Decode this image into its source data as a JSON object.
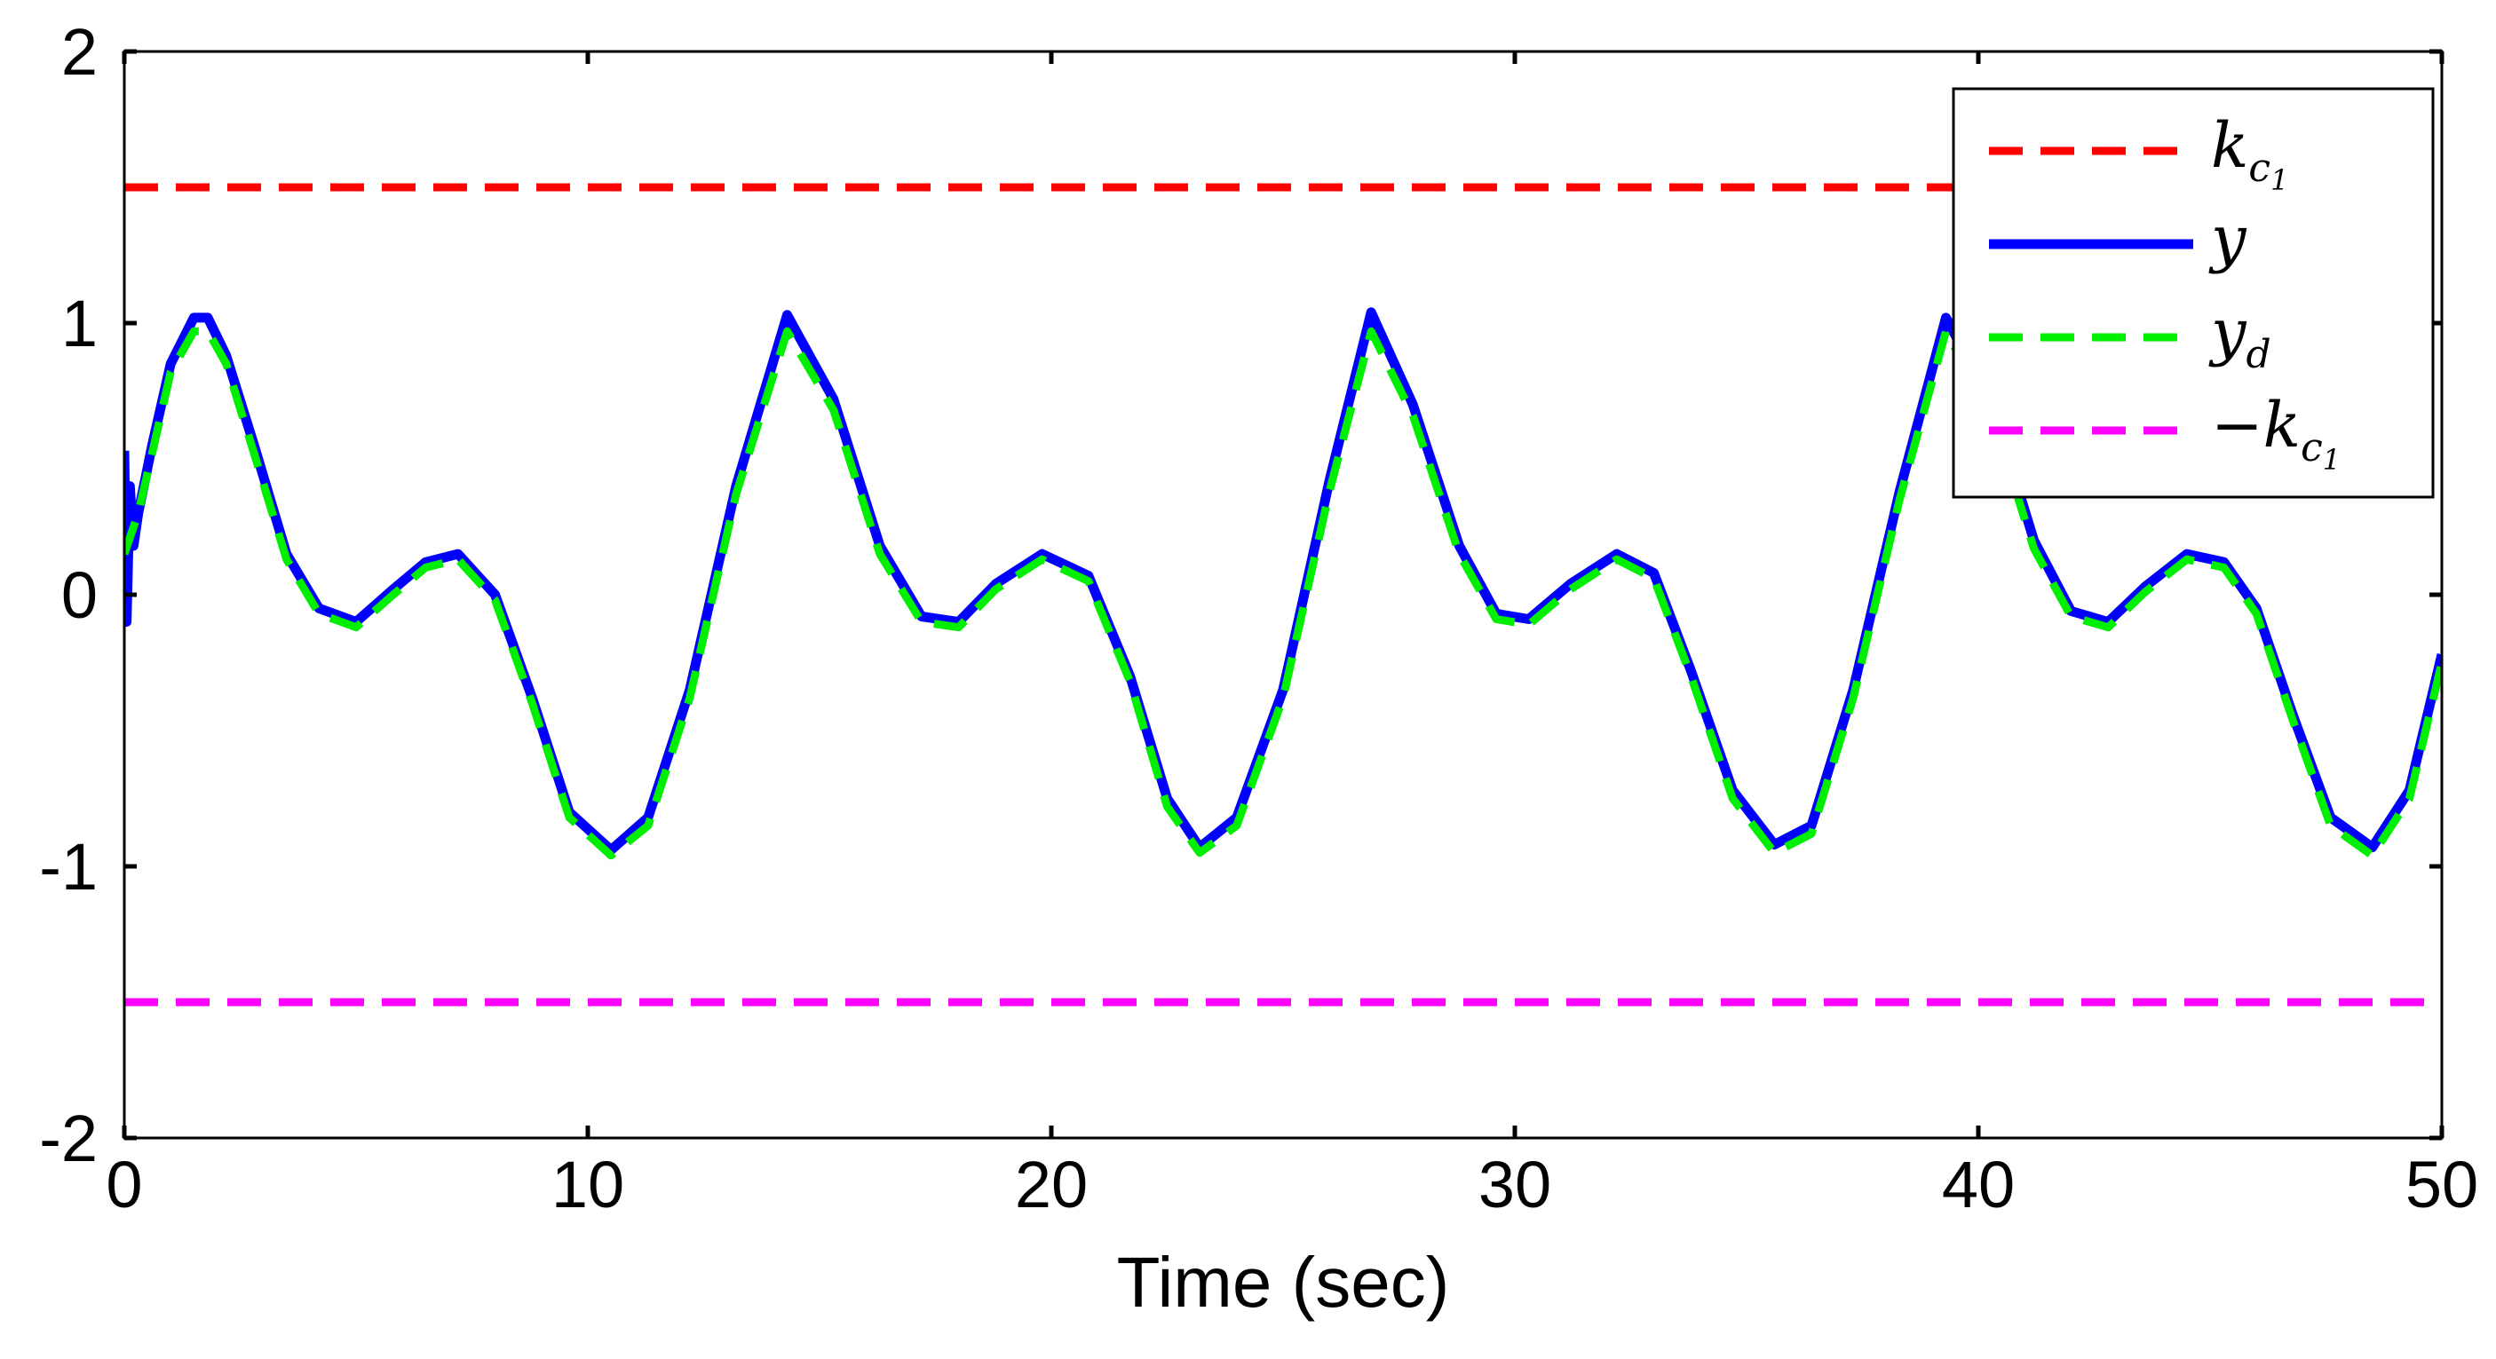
{
  "chart_data": {
    "type": "line",
    "xlabel": "Time (sec)",
    "ylabel": "",
    "xlim": [
      0,
      50
    ],
    "ylim": [
      -2,
      2
    ],
    "xticks": [
      0,
      10,
      20,
      30,
      40,
      50
    ],
    "yticks": [
      -2,
      -1,
      0,
      1,
      2
    ],
    "xtick_labels": [
      "0",
      "10",
      "20",
      "30",
      "40",
      "50"
    ],
    "ytick_labels": [
      "-2",
      "-1",
      "0",
      "1",
      "2"
    ],
    "grid": false,
    "legend_position": "top-right",
    "series": [
      {
        "name": "k_c1",
        "legend": {
          "base": "k",
          "sub": "c",
          "subsub": "1",
          "prefix": ""
        },
        "color": "#ff0000",
        "style": "dashed",
        "x": [
          0,
          50
        ],
        "y": [
          1.5,
          1.5
        ]
      },
      {
        "name": "y",
        "legend": {
          "base": "y",
          "sub": "",
          "subsub": "",
          "prefix": ""
        },
        "color": "#0000ff",
        "style": "solid",
        "x": [
          0,
          0.05,
          0.12,
          0.2,
          0.3,
          0.6,
          1.0,
          1.5,
          1.8,
          2.2,
          2.8,
          3.5,
          4.2,
          5.0,
          5.8,
          6.5,
          7.2,
          8.0,
          8.8,
          9.6,
          10.5,
          11.3,
          12.2,
          13.2,
          14.3,
          15.3,
          16.3,
          17.2,
          18.0,
          18.8,
          19.8,
          20.8,
          21.7,
          22.5,
          23.2,
          24.0,
          25.0,
          26.0,
          26.9,
          27.8,
          28.8,
          29.6,
          30.3,
          31.2,
          32.2,
          33.0,
          33.8,
          34.7,
          35.6,
          36.4,
          37.3,
          38.3,
          39.3,
          40.3,
          41.2,
          42.0,
          42.8,
          43.6,
          44.5,
          45.3,
          46.0,
          46.8,
          47.6,
          48.5,
          49.3,
          50.0
        ],
        "y": [
          0.53,
          -0.1,
          0.4,
          0.18,
          0.3,
          0.55,
          0.85,
          1.02,
          1.02,
          0.88,
          0.55,
          0.15,
          -0.05,
          -0.1,
          0.02,
          0.12,
          0.15,
          0.0,
          -0.38,
          -0.8,
          -0.94,
          -0.82,
          -0.35,
          0.4,
          1.03,
          0.72,
          0.18,
          -0.08,
          -0.1,
          0.04,
          0.15,
          0.07,
          -0.3,
          -0.75,
          -0.93,
          -0.82,
          -0.35,
          0.42,
          1.04,
          0.7,
          0.18,
          -0.07,
          -0.09,
          0.04,
          0.15,
          0.08,
          -0.28,
          -0.72,
          -0.92,
          -0.85,
          -0.35,
          0.38,
          1.02,
          0.7,
          0.2,
          -0.06,
          -0.1,
          0.03,
          0.15,
          0.12,
          -0.05,
          -0.45,
          -0.82,
          -0.93,
          -0.72,
          -0.22
        ]
      },
      {
        "name": "y_d",
        "legend": {
          "base": "y",
          "sub": "d",
          "subsub": "",
          "prefix": ""
        },
        "color": "#00ee00",
        "style": "dashed",
        "x": [
          0,
          0.3,
          0.6,
          1.0,
          1.5,
          1.8,
          2.2,
          2.8,
          3.5,
          4.2,
          5.0,
          5.8,
          6.5,
          7.2,
          8.0,
          8.8,
          9.6,
          10.5,
          11.3,
          12.2,
          13.2,
          14.3,
          15.3,
          16.3,
          17.2,
          18.0,
          18.8,
          19.8,
          20.8,
          21.7,
          22.5,
          23.2,
          24.0,
          25.0,
          26.0,
          26.9,
          27.8,
          28.8,
          29.6,
          30.3,
          31.2,
          32.2,
          33.0,
          33.8,
          34.7,
          35.6,
          36.4,
          37.3,
          38.3,
          39.3,
          40.3,
          41.2,
          42.0,
          42.8,
          43.6,
          44.5,
          45.3,
          46.0,
          46.8,
          47.6,
          48.5,
          49.3,
          50.0
        ],
        "y": [
          0.15,
          0.3,
          0.52,
          0.82,
          0.97,
          0.97,
          0.85,
          0.52,
          0.13,
          -0.07,
          -0.12,
          0.0,
          0.1,
          0.13,
          -0.02,
          -0.4,
          -0.82,
          -0.96,
          -0.85,
          -0.38,
          0.37,
          0.97,
          0.68,
          0.15,
          -0.1,
          -0.12,
          0.02,
          0.13,
          0.05,
          -0.32,
          -0.78,
          -0.95,
          -0.85,
          -0.38,
          0.38,
          0.97,
          0.66,
          0.15,
          -0.09,
          -0.11,
          0.02,
          0.13,
          0.06,
          -0.3,
          -0.75,
          -0.95,
          -0.88,
          -0.38,
          0.35,
          0.97,
          0.66,
          0.17,
          -0.08,
          -0.12,
          0.01,
          0.13,
          0.1,
          -0.07,
          -0.47,
          -0.85,
          -0.96,
          -0.75,
          -0.25
        ]
      },
      {
        "name": "-k_c1",
        "legend": {
          "base": "k",
          "sub": "c",
          "subsub": "1",
          "prefix": "−"
        },
        "color": "#ff00ff",
        "style": "dashed",
        "x": [
          0,
          50
        ],
        "y": [
          -1.5,
          -1.5
        ]
      }
    ]
  }
}
